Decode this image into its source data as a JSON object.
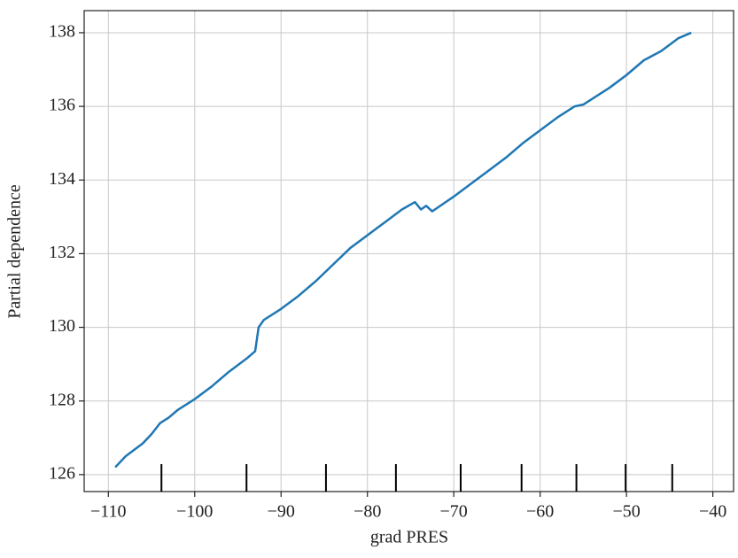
{
  "chart_data": {
    "type": "line",
    "xlabel": "grad PRES",
    "ylabel": "Partial dependence",
    "x": [
      -109.2,
      -108,
      -106,
      -105,
      -104,
      -103,
      -102,
      -100,
      -98,
      -96,
      -94,
      -93,
      -92.6,
      -92,
      -90,
      -88,
      -86,
      -84,
      -82,
      -80,
      -78,
      -76,
      -74.5,
      -73.8,
      -73.2,
      -72.5,
      -70,
      -68,
      -66,
      -64,
      -62,
      -60,
      -58,
      -56,
      -55,
      -52,
      -50,
      -48,
      -46,
      -44,
      -42.5
    ],
    "values": [
      126.2,
      126.5,
      126.85,
      127.1,
      127.4,
      127.55,
      127.75,
      128.05,
      128.4,
      128.8,
      129.15,
      129.35,
      130.0,
      130.2,
      130.5,
      130.85,
      131.25,
      131.7,
      132.15,
      132.5,
      132.85,
      133.2,
      133.4,
      133.2,
      133.3,
      133.15,
      133.55,
      133.9,
      134.25,
      134.6,
      135.0,
      135.35,
      135.7,
      136.0,
      136.05,
      136.5,
      136.85,
      137.25,
      137.5,
      137.85,
      138.0
    ],
    "color": "#1f77b4",
    "deciles": [
      -103.85,
      -94.0,
      -84.8,
      -76.7,
      -69.2,
      -62.15,
      -55.8,
      -50.1,
      -44.7
    ],
    "xlim": [
      -112.8,
      -37.6
    ],
    "ylim": [
      125.54,
      138.6
    ],
    "xticks": [
      {
        "value": -110,
        "label": "−110"
      },
      {
        "value": -100,
        "label": "−100"
      },
      {
        "value": -90,
        "label": "−90"
      },
      {
        "value": -80,
        "label": "−80"
      },
      {
        "value": -70,
        "label": "−70"
      },
      {
        "value": -60,
        "label": "−60"
      },
      {
        "value": -50,
        "label": "−50"
      },
      {
        "value": -40,
        "label": "−40"
      }
    ],
    "yticks": [
      126,
      128,
      130,
      132,
      134,
      136,
      138
    ],
    "grid": true
  }
}
